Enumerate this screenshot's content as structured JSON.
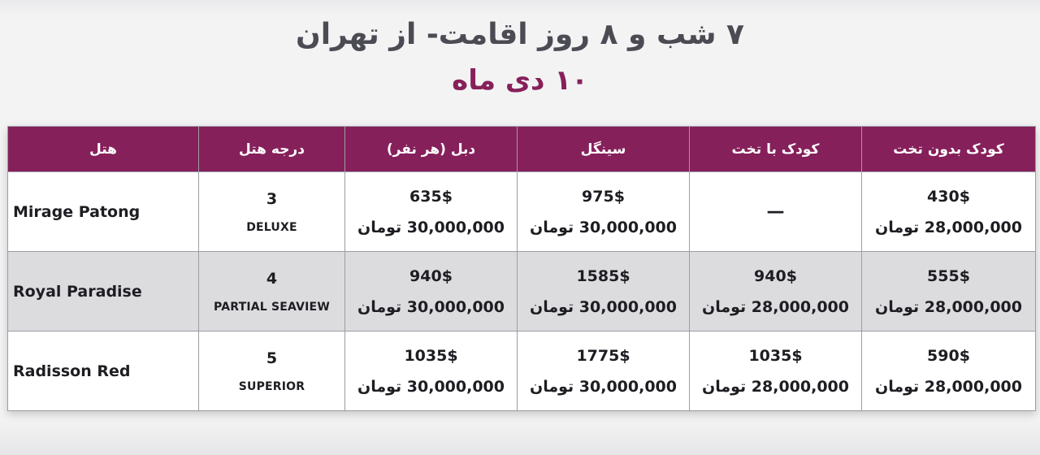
{
  "title": {
    "line1": "۷ شب و ۸ روز اقامت- از تهران",
    "line2": "۱۰ دی ماه"
  },
  "colors": {
    "header_bg": "#86205b",
    "subtitle": "#86205b",
    "title": "#4b4b53",
    "row_shade": "#dcdcdf"
  },
  "table": {
    "headers": {
      "hotel": "هتل",
      "grade": "درجه هتل",
      "double": "دبل (هر نفر)",
      "single": "سینگل",
      "child_bed": "کودک با تخت",
      "child_nobed": "کودک بدون تخت"
    },
    "rows": [
      {
        "hotel": "Mirage Patong",
        "stars": "3",
        "room": "DELUXE",
        "double": {
          "usd": "635$",
          "toman": "30,000,000 تومان"
        },
        "single": {
          "usd": "975$",
          "toman": "30,000,000 تومان"
        },
        "child_bed": {
          "dash": "—"
        },
        "child_nobed": {
          "usd": "430$",
          "toman": "28,000,000 تومان"
        }
      },
      {
        "hotel": "Royal Paradise",
        "stars": "4",
        "room": "PARTIAL SEAVIEW",
        "double": {
          "usd": "940$",
          "toman": "30,000,000 تومان"
        },
        "single": {
          "usd": "1585$",
          "toman": "30,000,000 تومان"
        },
        "child_bed": {
          "usd": "940$",
          "toman": "28,000,000 تومان"
        },
        "child_nobed": {
          "usd": "555$",
          "toman": "28,000,000 تومان"
        }
      },
      {
        "hotel": "Radisson Red",
        "stars": "5",
        "room": "SUPERIOR",
        "double": {
          "usd": "1035$",
          "toman": "30,000,000 تومان"
        },
        "single": {
          "usd": "1775$",
          "toman": "30,000,000 تومان"
        },
        "child_bed": {
          "usd": "1035$",
          "toman": "28,000,000 تومان"
        },
        "child_nobed": {
          "usd": "590$",
          "toman": "28,000,000 تومان"
        }
      }
    ]
  }
}
